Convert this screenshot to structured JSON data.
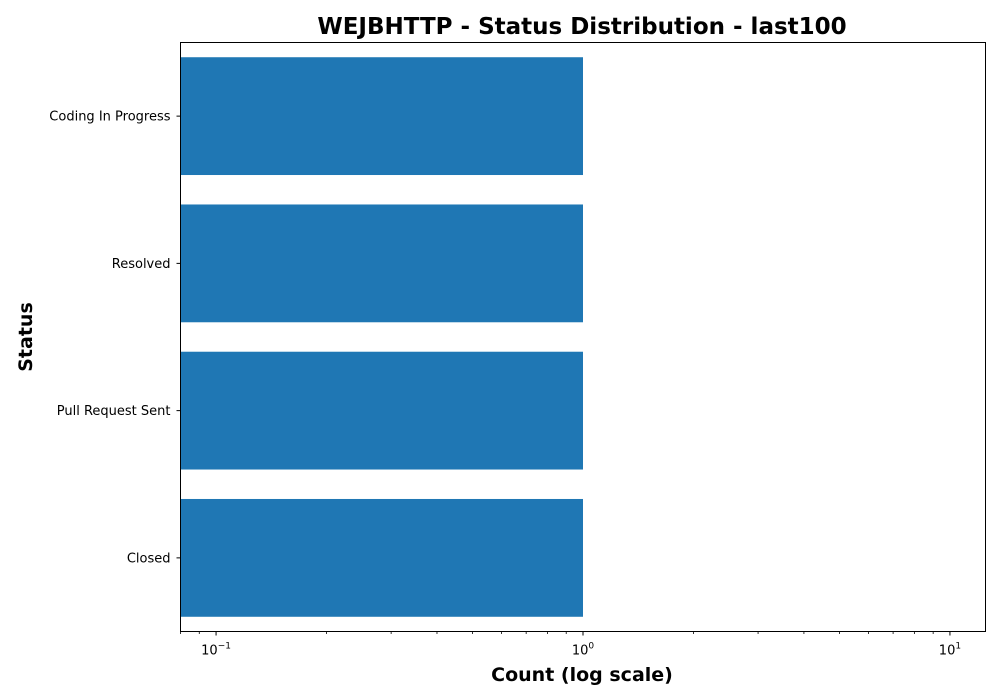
{
  "chart_data": {
    "type": "bar",
    "orientation": "horizontal",
    "title": "WEJBHTTP - Status Distribution - last100",
    "xlabel": "Count (log scale)",
    "ylabel": "Status",
    "x_scale": "log",
    "xlim": [
      0.08,
      12.5
    ],
    "x_ticks": [
      {
        "value": 0.1,
        "base": "10",
        "exp": "−1"
      },
      {
        "value": 1,
        "base": "10",
        "exp": "0"
      },
      {
        "value": 10,
        "base": "10",
        "exp": "1"
      }
    ],
    "categories": [
      "Coding In Progress",
      "Resolved",
      "Pull Request Sent",
      "Closed"
    ],
    "values": [
      1,
      1,
      1,
      1
    ],
    "bar_color": "#1f77b4",
    "grid": false,
    "legend": "none"
  }
}
